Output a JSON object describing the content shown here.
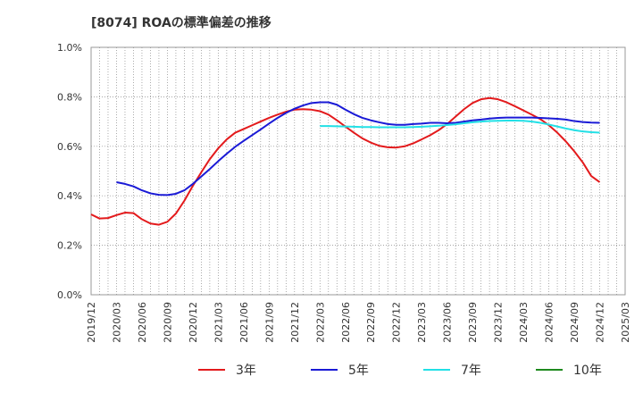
{
  "chart_data": {
    "type": "line",
    "title": "[8074]  ROAの標準偏差の推移",
    "ylim": [
      0.0,
      1.0
    ],
    "yticks": [
      "0.0%",
      "0.2%",
      "0.4%",
      "0.6%",
      "0.8%",
      "1.0%"
    ],
    "xticks": [
      "2019/12",
      "2020/03",
      "2020/06",
      "2020/09",
      "2020/12",
      "2021/03",
      "2021/06",
      "2021/09",
      "2021/12",
      "2022/03",
      "2022/06",
      "2022/09",
      "2022/12",
      "2023/03",
      "2023/06",
      "2023/09",
      "2023/12",
      "2024/03",
      "2024/06",
      "2024/09",
      "2024/12",
      "2025/03"
    ],
    "grid": true,
    "legend_position": "bottom",
    "series": [
      {
        "name": "3年",
        "color": "#e31a1c",
        "x": [
          "2019/12",
          "2020/01",
          "2020/02",
          "2020/03",
          "2020/04",
          "2020/05",
          "2020/06",
          "2020/07",
          "2020/08",
          "2020/09",
          "2020/10",
          "2020/11",
          "2020/12",
          "2021/01",
          "2021/02",
          "2021/03",
          "2021/04",
          "2021/05",
          "2021/06",
          "2021/07",
          "2021/08",
          "2021/09",
          "2021/10",
          "2021/11",
          "2021/12",
          "2022/01",
          "2022/02",
          "2022/03",
          "2022/04",
          "2022/05",
          "2022/06",
          "2022/07",
          "2022/08",
          "2022/09",
          "2022/10",
          "2022/11",
          "2022/12",
          "2023/01",
          "2023/02",
          "2023/03",
          "2023/04",
          "2023/05",
          "2023/06",
          "2023/07",
          "2023/08",
          "2023/09",
          "2023/10",
          "2023/11",
          "2023/12",
          "2024/01",
          "2024/02",
          "2024/03",
          "2024/04",
          "2024/05",
          "2024/06",
          "2024/07",
          "2024/08",
          "2024/09",
          "2024/10",
          "2024/11",
          "2024/12"
        ],
        "values": [
          0.325,
          0.308,
          0.31,
          0.322,
          0.332,
          0.33,
          0.305,
          0.288,
          0.283,
          0.295,
          0.328,
          0.38,
          0.44,
          0.495,
          0.548,
          0.592,
          0.628,
          0.655,
          0.67,
          0.685,
          0.7,
          0.715,
          0.728,
          0.74,
          0.748,
          0.75,
          0.748,
          0.742,
          0.728,
          0.705,
          0.68,
          0.655,
          0.632,
          0.615,
          0.602,
          0.596,
          0.595,
          0.6,
          0.612,
          0.628,
          0.645,
          0.665,
          0.69,
          0.72,
          0.75,
          0.775,
          0.79,
          0.795,
          0.79,
          0.778,
          0.762,
          0.745,
          0.728,
          0.71,
          0.685,
          0.655,
          0.62,
          0.58,
          0.535,
          0.48,
          0.455
        ]
      },
      {
        "name": "5年",
        "color": "#1a1ad6",
        "x": [
          "2020/03",
          "2020/04",
          "2020/05",
          "2020/06",
          "2020/07",
          "2020/08",
          "2020/09",
          "2020/10",
          "2020/11",
          "2020/12",
          "2021/01",
          "2021/02",
          "2021/03",
          "2021/04",
          "2021/05",
          "2021/06",
          "2021/07",
          "2021/08",
          "2021/09",
          "2021/10",
          "2021/11",
          "2021/12",
          "2022/01",
          "2022/02",
          "2022/03",
          "2022/04",
          "2022/05",
          "2022/06",
          "2022/07",
          "2022/08",
          "2022/09",
          "2022/10",
          "2022/11",
          "2022/12",
          "2023/01",
          "2023/02",
          "2023/03",
          "2023/04",
          "2023/05",
          "2023/06",
          "2023/07",
          "2023/08",
          "2023/09",
          "2023/10",
          "2023/11",
          "2023/12",
          "2024/01",
          "2024/02",
          "2024/03",
          "2024/04",
          "2024/05",
          "2024/06",
          "2024/07",
          "2024/08",
          "2024/09",
          "2024/10",
          "2024/11",
          "2024/12"
        ],
        "values": [
          0.455,
          0.448,
          0.438,
          0.422,
          0.41,
          0.404,
          0.403,
          0.408,
          0.422,
          0.448,
          0.478,
          0.508,
          0.54,
          0.57,
          0.598,
          0.622,
          0.645,
          0.668,
          0.692,
          0.715,
          0.735,
          0.752,
          0.765,
          0.775,
          0.778,
          0.778,
          0.768,
          0.748,
          0.73,
          0.715,
          0.705,
          0.697,
          0.69,
          0.687,
          0.687,
          0.69,
          0.692,
          0.695,
          0.695,
          0.693,
          0.695,
          0.7,
          0.705,
          0.708,
          0.712,
          0.715,
          0.716,
          0.716,
          0.716,
          0.716,
          0.715,
          0.713,
          0.711,
          0.708,
          0.702,
          0.698,
          0.696,
          0.695
        ]
      },
      {
        "name": "7年",
        "color": "#22e0e6",
        "x": [
          "2022/03",
          "2022/04",
          "2022/05",
          "2022/06",
          "2022/07",
          "2022/08",
          "2022/09",
          "2022/10",
          "2022/11",
          "2022/12",
          "2023/01",
          "2023/02",
          "2023/03",
          "2023/04",
          "2023/05",
          "2023/06",
          "2023/07",
          "2023/08",
          "2023/09",
          "2023/10",
          "2023/11",
          "2023/12",
          "2024/01",
          "2024/02",
          "2024/03",
          "2024/04",
          "2024/05",
          "2024/06",
          "2024/07",
          "2024/08",
          "2024/09",
          "2024/10",
          "2024/11",
          "2024/12"
        ],
        "values": [
          0.682,
          0.682,
          0.681,
          0.68,
          0.679,
          0.678,
          0.678,
          0.677,
          0.677,
          0.677,
          0.677,
          0.678,
          0.679,
          0.681,
          0.683,
          0.686,
          0.689,
          0.693,
          0.697,
          0.7,
          0.702,
          0.703,
          0.704,
          0.704,
          0.703,
          0.7,
          0.695,
          0.688,
          0.68,
          0.672,
          0.665,
          0.66,
          0.657,
          0.655
        ]
      },
      {
        "name": "10年",
        "color": "#1e8a1e",
        "x": [],
        "values": []
      }
    ]
  }
}
